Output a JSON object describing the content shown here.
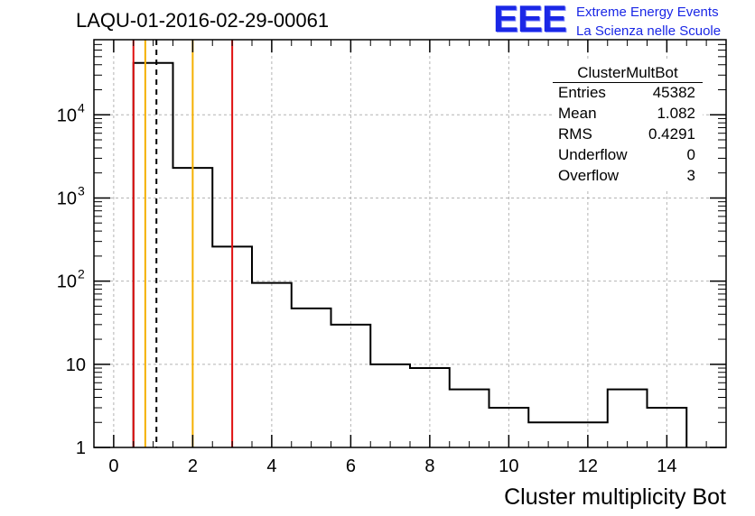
{
  "chart_data": {
    "type": "bar",
    "style": "step-histogram",
    "title": "LAQU-01-2016-02-29-00061",
    "xlabel": "Cluster multiplicity Bot",
    "ylabel": "",
    "xlim": [
      -0.5,
      15.5
    ],
    "ylim": [
      1,
      80000
    ],
    "yscale": "log",
    "grid": true,
    "bins": [
      {
        "lo": 0.5,
        "hi": 1.5,
        "value": 42000
      },
      {
        "lo": 1.5,
        "hi": 2.5,
        "value": 2300
      },
      {
        "lo": 2.5,
        "hi": 3.5,
        "value": 260
      },
      {
        "lo": 3.5,
        "hi": 4.5,
        "value": 95
      },
      {
        "lo": 4.5,
        "hi": 5.5,
        "value": 47
      },
      {
        "lo": 5.5,
        "hi": 6.5,
        "value": 30
      },
      {
        "lo": 6.5,
        "hi": 7.5,
        "value": 10
      },
      {
        "lo": 7.5,
        "hi": 8.5,
        "value": 9
      },
      {
        "lo": 8.5,
        "hi": 9.5,
        "value": 5
      },
      {
        "lo": 9.5,
        "hi": 10.5,
        "value": 3
      },
      {
        "lo": 10.5,
        "hi": 11.5,
        "value": 2
      },
      {
        "lo": 11.5,
        "hi": 12.5,
        "value": 2
      },
      {
        "lo": 12.5,
        "hi": 13.5,
        "value": 5
      },
      {
        "lo": 13.5,
        "hi": 14.5,
        "value": 3
      }
    ],
    "x_ticks": [
      {
        "value": 0,
        "label": "0"
      },
      {
        "value": 2,
        "label": "2"
      },
      {
        "value": 4,
        "label": "4"
      },
      {
        "value": 6,
        "label": "6"
      },
      {
        "value": 8,
        "label": "8"
      },
      {
        "value": 10,
        "label": "10"
      },
      {
        "value": 12,
        "label": "12"
      },
      {
        "value": 14,
        "label": "14"
      }
    ],
    "y_ticks": [
      {
        "value": 1,
        "label": "1",
        "exp": ""
      },
      {
        "value": 10,
        "label": "10",
        "exp": ""
      },
      {
        "value": 100,
        "label": "10",
        "exp": "2"
      },
      {
        "value": 1000,
        "label": "10",
        "exp": "3"
      },
      {
        "value": 10000,
        "label": "10",
        "exp": "4"
      }
    ],
    "vertical_lines": [
      {
        "x": 0.5,
        "color": "#e01010",
        "style": "solid"
      },
      {
        "x": 3.0,
        "color": "#e01010",
        "style": "solid"
      },
      {
        "x": 0.8,
        "color": "#f5b000",
        "style": "solid"
      },
      {
        "x": 2.0,
        "color": "#f5b000",
        "style": "solid"
      },
      {
        "x": 1.082,
        "color": "#000000",
        "style": "dashed"
      }
    ],
    "stats": {
      "title": "ClusterMultBot",
      "rows": [
        {
          "key": "Entries",
          "value": "45382"
        },
        {
          "key": "Mean",
          "value": "1.082"
        },
        {
          "key": "RMS",
          "value": "0.4291"
        },
        {
          "key": "Underflow",
          "value": "0"
        },
        {
          "key": "Overflow",
          "value": "3"
        }
      ]
    }
  },
  "logo": {
    "mark": "EEE",
    "line1": "Extreme Energy Events",
    "line2": "La Scienza nelle Scuole",
    "color": "#1a27e6"
  }
}
